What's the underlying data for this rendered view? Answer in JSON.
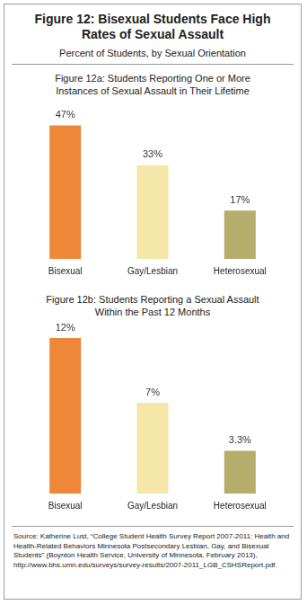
{
  "header": {
    "title": "Figure 12: Bisexual Students Face High Rates of Sexual Assault",
    "subtitle": "Percent of Students, by Sexual Orientation"
  },
  "chart_data": [
    {
      "type": "bar",
      "title": "Figure 12a: Students Reporting One or More Instances of Sexual Assault in Their Lifetime",
      "categories": [
        "Bisexual",
        "Gay/Lesbian",
        "Heterosexual"
      ],
      "values": [
        47,
        33,
        17
      ],
      "value_labels": [
        "47%",
        "33%",
        "17%"
      ],
      "colors": [
        "#ee8838",
        "#f5e6aa",
        "#b6ac6b"
      ],
      "data_labels": true,
      "tick_labels": "x",
      "grid": false
    },
    {
      "type": "bar",
      "title": "Figure 12b: Students Reporting a Sexual Assault Within the Past 12 Months",
      "categories": [
        "Bisexual",
        "Gay/Lesbian",
        "Heterosexual"
      ],
      "values": [
        12,
        7,
        3.3
      ],
      "value_labels": [
        "12%",
        "7%",
        "3.3%"
      ],
      "colors": [
        "#ee8838",
        "#f5e6aa",
        "#b6ac6b"
      ],
      "data_labels": true,
      "tick_labels": "x",
      "grid": false
    }
  ],
  "source": "Source: Katherine Lust, “College Student Health Survey Report 2007-2011: Health and Health-Related Behaviors Minnesota Postsecondary Lesbian, Gay, and Bisexual Students” (Boynton Health Service, University of Minnesota, February 2013), http://www.bhs.umn.edu/surveys/survey-results/2007-2011_LGB_CSHSReport.pdf."
}
